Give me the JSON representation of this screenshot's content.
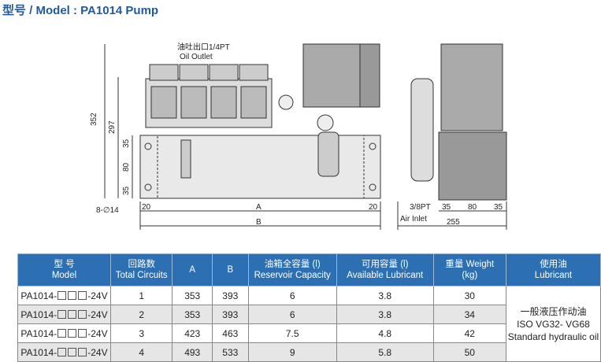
{
  "title": "型号 / Model : PA1014 Pump",
  "diagram": {
    "outlet_cn": "油吐出口1/4PT",
    "outlet_en": "Oil Outlet",
    "dim_352": "352",
    "dim_297": "297",
    "dim_35a": "35",
    "dim_80": "80",
    "dim_35b": "35",
    "holes": "8-∅14",
    "dim_20a": "20",
    "dim_A": "A",
    "dim_20b": "20",
    "dim_B": "B",
    "inlet_size": "3/8PT",
    "inlet": "Air Inlet",
    "side_35a": "35",
    "side_80": "80",
    "side_35b": "35",
    "side_255": "255"
  },
  "table": {
    "headers": [
      {
        "cn": "型 号",
        "en": "Model"
      },
      {
        "cn": "回路数",
        "en": "Total Circuits"
      },
      {
        "cn": "A",
        "en": ""
      },
      {
        "cn": "B",
        "en": ""
      },
      {
        "cn": "油箱全容量 (l)",
        "en": "Reservoir Capacity"
      },
      {
        "cn": "可用容量 (l)",
        "en": "Available Lubricant"
      },
      {
        "cn": "重量 Weight",
        "en": "(kg)"
      },
      {
        "cn": "使用油",
        "en": "Lubricant"
      }
    ],
    "rows": [
      {
        "model_prefix": "PA1014-",
        "model_suffix": "-24V",
        "circuits": "1",
        "a": "353",
        "b": "393",
        "reservoir": "6",
        "available": "3.8",
        "weight": "30"
      },
      {
        "model_prefix": "PA1014-",
        "model_suffix": "-24V",
        "circuits": "2",
        "a": "353",
        "b": "393",
        "reservoir": "6",
        "available": "3.8",
        "weight": "34"
      },
      {
        "model_prefix": "PA1014-",
        "model_suffix": "-24V",
        "circuits": "3",
        "a": "423",
        "b": "463",
        "reservoir": "7.5",
        "available": "4.8",
        "weight": "42"
      },
      {
        "model_prefix": "PA1014-",
        "model_suffix": "-24V",
        "circuits": "4",
        "a": "493",
        "b": "533",
        "reservoir": "9",
        "available": "5.8",
        "weight": "50"
      }
    ],
    "lubricant": {
      "line1": "一般液压作动油",
      "line2": "ISO VG32- VG68",
      "line3": "Standard hydraulic oil"
    }
  }
}
